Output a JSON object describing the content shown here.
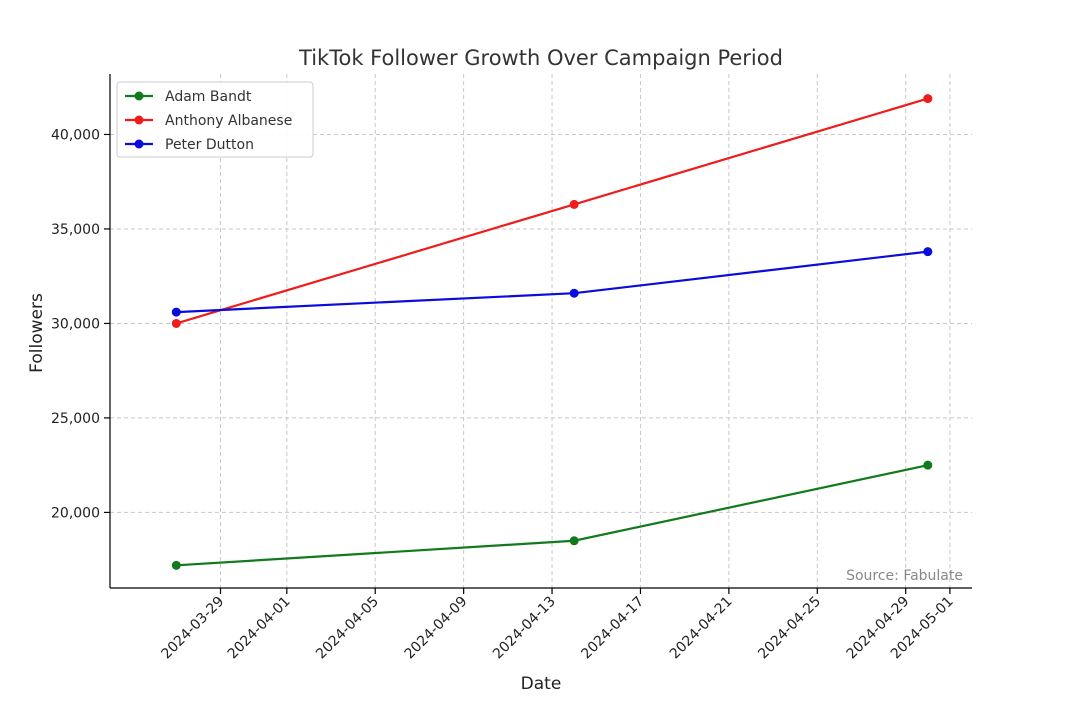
{
  "chart_data": {
    "type": "line",
    "title": "TikTok Follower Growth Over Campaign Period",
    "xlabel": "Date",
    "ylabel": "Followers",
    "x": [
      "2024-03-27",
      "2024-04-14",
      "2024-04-30"
    ],
    "x_ticks": [
      "2024-03-29",
      "2024-04-01",
      "2024-04-05",
      "2024-04-09",
      "2024-04-13",
      "2024-04-17",
      "2024-04-21",
      "2024-04-25",
      "2024-04-29",
      "2024-05-01"
    ],
    "xlim": [
      "2024-03-24",
      "2024-05-02"
    ],
    "y_ticks": [
      20000,
      25000,
      30000,
      35000,
      40000
    ],
    "ylim": [
      16000,
      43200
    ],
    "grid": true,
    "legend_position": "top-left",
    "annotation": "Source: Fabulate",
    "series": [
      {
        "name": "Adam Bandt",
        "color": "#117a1d",
        "values": [
          17200,
          18500,
          22500
        ]
      },
      {
        "name": "Anthony Albanese",
        "color": "#f01c1c",
        "values": [
          30000,
          36300,
          41900
        ]
      },
      {
        "name": "Peter Dutton",
        "color": "#0b0bdc",
        "values": [
          30600,
          31600,
          33800
        ]
      }
    ]
  }
}
